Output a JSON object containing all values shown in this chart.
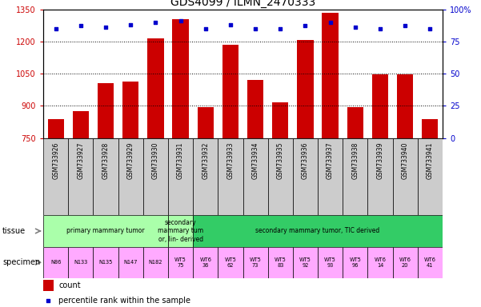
{
  "title": "GDS4099 / ILMN_2470333",
  "samples": [
    "GSM733926",
    "GSM733927",
    "GSM733928",
    "GSM733929",
    "GSM733930",
    "GSM733931",
    "GSM733932",
    "GSM733933",
    "GSM733934",
    "GSM733935",
    "GSM733936",
    "GSM733937",
    "GSM733938",
    "GSM733939",
    "GSM733940",
    "GSM733941"
  ],
  "counts": [
    840,
    875,
    1005,
    1015,
    1215,
    1305,
    893,
    1185,
    1020,
    915,
    1205,
    1335,
    893,
    1048,
    1048,
    840
  ],
  "percentile_ranks": [
    85,
    87,
    86,
    88,
    90,
    91,
    85,
    88,
    85,
    85,
    87,
    90,
    86,
    85,
    87,
    85
  ],
  "ylim_left": [
    750,
    1350
  ],
  "ylim_right": [
    0,
    100
  ],
  "yticks_left": [
    750,
    900,
    1050,
    1200,
    1350
  ],
  "yticks_right": [
    0,
    25,
    50,
    75,
    100
  ],
  "bar_color": "#cc0000",
  "dot_color": "#0000cc",
  "tissue_groups": [
    {
      "label": "primary mammary tumor",
      "start": 0,
      "end": 4,
      "color": "#aaffaa"
    },
    {
      "label": "secondary\nmammary tum\nor, lin- derived",
      "start": 5,
      "end": 5,
      "color": "#aaffaa"
    },
    {
      "label": "secondary mammary tumor, TIC derived",
      "start": 6,
      "end": 15,
      "color": "#33cc66"
    }
  ],
  "specimen_labels": [
    "N86",
    "N133",
    "N135",
    "N147",
    "N182",
    "WT5\n75",
    "WT6\n36",
    "WT5\n62",
    "WT5\n73",
    "WT5\n83",
    "WT5\n92",
    "WT5\n93",
    "WT5\n96",
    "WT6\n14",
    "WT6\n20",
    "WT6\n41"
  ],
  "specimen_colors": [
    "#ffaaff",
    "#ffaaff",
    "#ffaaff",
    "#ffaaff",
    "#ffaaff",
    "#ffaaff",
    "#ffaaff",
    "#ffaaff",
    "#ffaaff",
    "#ffaaff",
    "#ffaaff",
    "#ffaaff",
    "#ffaaff",
    "#ffaaff",
    "#ffaaff",
    "#ffaaff"
  ],
  "legend_count_color": "#cc0000",
  "legend_dot_color": "#0000cc",
  "xticklabel_bg": "#cccccc",
  "dot_size": 12
}
